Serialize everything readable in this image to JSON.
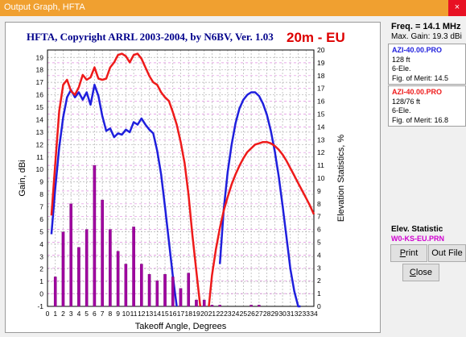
{
  "window": {
    "title": "Output Graph, HFTA",
    "close_glyph": "×"
  },
  "graph": {
    "title": "HFTA, Copyright ARRL 2003-2004, by N6BV, Ver. 1.03",
    "band": "20m - EU",
    "xlabel": "Takeoff Angle, Degrees",
    "ylabel_left": "Gain, dBi",
    "ylabel_right": "Elevation Statistics, %"
  },
  "side": {
    "freq": "Freq. = 14.1 MHz",
    "max_gain": "Max. Gain: 19.3 dBi",
    "ant1": {
      "name": "AZI-40.00.PRO",
      "height": "128 ft",
      "type": "6-Ele.",
      "merit": "Fig. of Merit: 14.5"
    },
    "ant2": {
      "name": "AZI-40.00.PRO",
      "height": "128/76 ft",
      "type": "6-Ele.",
      "merit": "Fig. of Merit: 16.8"
    },
    "elev_label": "Elev. Statistic",
    "elev_file": "W0-KS-EU.PRN"
  },
  "buttons": {
    "print_pre": "",
    "print_ul": "P",
    "print_post": "rint",
    "outfile": "Out File",
    "close_pre": "",
    "close_ul": "C",
    "close_post": "lose"
  },
  "colors": {
    "ant1": "#1f1fdd",
    "ant2": "#ee1a1a",
    "bars": "#a000a0",
    "title": "#00008b",
    "band": "#dd0000",
    "titlebar": "#f0a030"
  },
  "chart_data": {
    "type": "line",
    "x_ticks": [
      "0",
      "1",
      "2",
      "3",
      "4",
      "5",
      "6",
      "7",
      "8",
      "9",
      "10",
      "11",
      "12",
      "13",
      "14",
      "15",
      "16",
      "17",
      "18",
      "19",
      "20",
      "21",
      "22",
      "23",
      "24",
      "25",
      "26",
      "27",
      "28",
      "29",
      "30",
      "31",
      "32",
      "33",
      "34"
    ],
    "xlim": [
      0,
      34
    ],
    "ylim_left": [
      -1,
      19.6
    ],
    "ylim_right": [
      0,
      20
    ],
    "left_ticks": [
      "-1",
      "0",
      "1",
      "2",
      "3",
      "4",
      "5",
      "6",
      "7",
      "8",
      "9",
      "10",
      "11",
      "12",
      "13",
      "14",
      "15",
      "16",
      "17",
      "18",
      "19"
    ],
    "right_ticks": [
      "0",
      "1",
      "2",
      "3",
      "4",
      "5",
      "6",
      "7",
      "8",
      "9",
      "10",
      "11",
      "12",
      "13",
      "14",
      "15",
      "16",
      "17",
      "18",
      "19",
      "20"
    ],
    "grid": true,
    "series": [
      {
        "name": "AZI-40.00.PRO",
        "axis": "left",
        "x": [
          0.5,
          1,
          1.5,
          2,
          2.5,
          3,
          3.5,
          4,
          4.5,
          5,
          5.5,
          6,
          6.5,
          7,
          7.5,
          8,
          8.5,
          9,
          9.5,
          10,
          10.5,
          11,
          11.5,
          12,
          12.5,
          13,
          13.5,
          14,
          14.5,
          15,
          15.5,
          16,
          16.5
        ],
        "y": [
          4.8,
          8.5,
          11.8,
          14.2,
          15.8,
          16.4,
          15.8,
          16.2,
          15.6,
          16.2,
          15.2,
          16.8,
          15.9,
          14.3,
          13.1,
          13.3,
          12.6,
          12.9,
          12.8,
          13.2,
          13.0,
          13.8,
          13.6,
          14.1,
          13.6,
          13.2,
          12.9,
          11.5,
          9.6,
          7.0,
          4.2,
          1.4,
          -1.0
        ]
      },
      {
        "name": "",
        "axis": "left",
        "x": [
          22,
          22.5,
          23,
          23.5,
          24,
          24.5,
          25,
          25.5,
          26,
          26.5,
          27,
          27.5,
          28,
          28.5,
          29,
          29.5,
          30,
          30.5,
          31,
          31.5,
          32,
          32.3
        ],
        "y": [
          2.4,
          6.8,
          9.8,
          12.0,
          13.7,
          14.9,
          15.6,
          16.0,
          16.2,
          16.2,
          15.9,
          15.3,
          14.4,
          13.1,
          11.5,
          9.5,
          7.1,
          4.6,
          2.0,
          0.2,
          -1.0,
          -1.0
        ]
      },
      {
        "name": "AZI-40.00.PRO",
        "axis": "left",
        "x": [
          0.5,
          1,
          1.5,
          2,
          2.5,
          3,
          3.5,
          4,
          4.5,
          5,
          5.5,
          6,
          6.5,
          7,
          7.5,
          8,
          8.5,
          9,
          9.5,
          10,
          10.5,
          11,
          11.5,
          12,
          12.5,
          13,
          13.5,
          14,
          14.5,
          15,
          15.5,
          16,
          16.5,
          17,
          17.5,
          18,
          18.5,
          19,
          19.5
        ],
        "y": [
          6.3,
          10.5,
          14.7,
          16.8,
          17.2,
          16.3,
          16.0,
          16.6,
          17.6,
          17.2,
          17.4,
          18.2,
          17.3,
          17.2,
          17.3,
          18.2,
          18.6,
          19.2,
          19.3,
          19.1,
          18.6,
          19.2,
          19.3,
          18.9,
          18.2,
          17.5,
          17.0,
          16.8,
          16.2,
          15.8,
          15.5,
          14.6,
          13.6,
          12.2,
          10.5,
          8.0,
          4.7,
          1.8,
          -1.0
        ]
      },
      {
        "name": "",
        "axis": "left",
        "x": [
          20.6,
          21,
          21.5,
          22,
          22.5,
          23,
          23.5,
          24,
          24.5,
          25,
          25.5,
          26,
          26.5,
          27,
          27.5,
          28,
          28.5,
          29,
          29.5,
          30,
          30.5,
          31,
          31.5,
          32,
          32.5,
          33,
          33.5,
          34
        ],
        "y": [
          -1.0,
          1.5,
          3.6,
          5.3,
          6.7,
          7.8,
          8.8,
          9.6,
          10.3,
          10.9,
          11.4,
          11.7,
          12.0,
          12.1,
          12.2,
          12.2,
          12.1,
          11.9,
          11.6,
          11.2,
          10.7,
          10.1,
          9.5,
          8.9,
          8.3,
          7.7,
          7.1,
          6.4
        ]
      },
      {
        "name": "W0-KS-EU.PRN",
        "type": "bar",
        "axis": "right",
        "x": [
          1,
          2,
          3,
          4,
          5,
          6,
          7,
          8,
          9,
          10,
          11,
          12,
          13,
          14,
          15,
          16,
          17,
          18,
          19,
          20,
          21,
          22,
          23,
          24,
          25,
          26,
          27,
          28,
          29,
          30,
          31,
          32,
          33,
          34
        ],
        "y": [
          2.3,
          5.8,
          8.0,
          4.6,
          6.0,
          11.0,
          8.3,
          6.0,
          4.3,
          3.3,
          6.2,
          3.3,
          2.5,
          2.0,
          2.5,
          2.3,
          1.4,
          2.6,
          0.5,
          0.5,
          0.1,
          0.1,
          0,
          0,
          0,
          0.1,
          0.1,
          0,
          0,
          0,
          0,
          0,
          0,
          0
        ]
      }
    ]
  }
}
